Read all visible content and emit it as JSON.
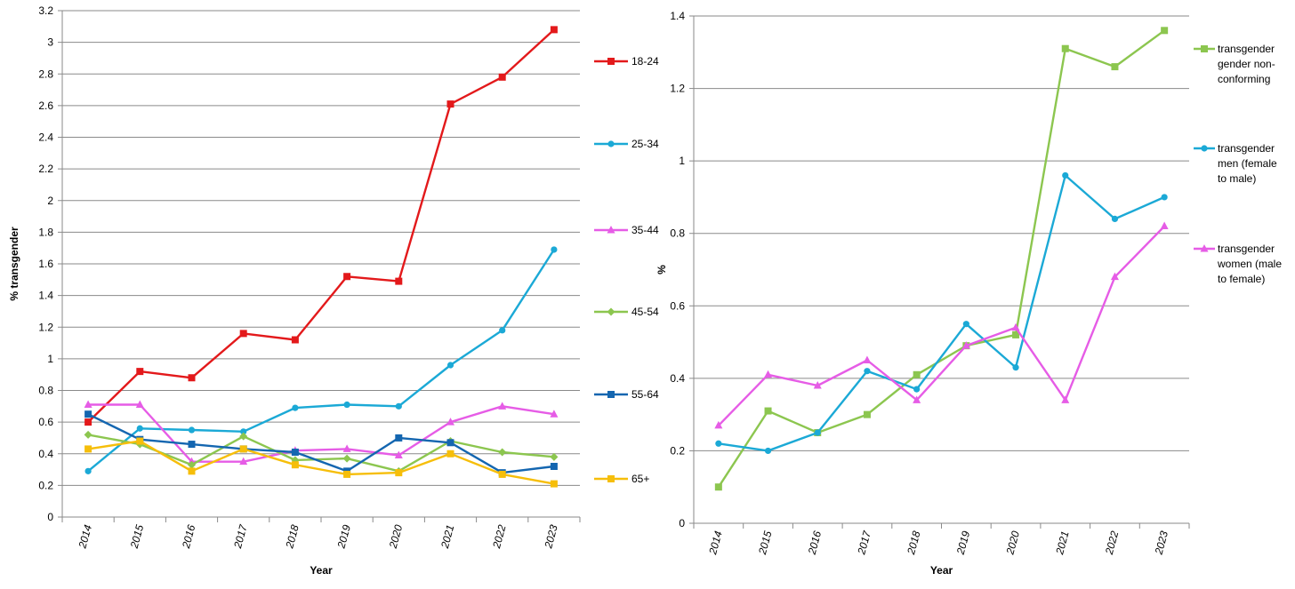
{
  "chart_data": [
    {
      "type": "line",
      "xlabel": "Year",
      "ylabel": "% transgender",
      "ylim": [
        0,
        3.2
      ],
      "yticks": [
        "0",
        "0.2",
        "0.4",
        "0.6",
        "0.8",
        "1",
        "1.2",
        "1.4",
        "1.6",
        "1.8",
        "2",
        "2.2",
        "2.4",
        "2.6",
        "2.8",
        "3",
        "3.2"
      ],
      "categories": [
        "2014",
        "2015",
        "2016",
        "2017",
        "2018",
        "2019",
        "2020",
        "2021",
        "2022",
        "2023"
      ],
      "grid": "horizontal",
      "legend_position": "right",
      "series": [
        {
          "name": "18-24",
          "color": "#e3191b",
          "marker": "square",
          "values": [
            0.6,
            0.92,
            0.88,
            1.16,
            1.12,
            1.52,
            1.49,
            2.61,
            2.78,
            3.08
          ]
        },
        {
          "name": "25-34",
          "color": "#1ba9d6",
          "marker": "circle",
          "values": [
            0.29,
            0.56,
            0.55,
            0.54,
            0.69,
            0.71,
            0.7,
            0.96,
            1.18,
            1.69
          ]
        },
        {
          "name": "35-44",
          "color": "#e65ce6",
          "marker": "triangle",
          "values": [
            0.71,
            0.71,
            0.35,
            0.35,
            0.42,
            0.43,
            0.39,
            0.6,
            0.7,
            0.65
          ]
        },
        {
          "name": "45-54",
          "color": "#8cc64f",
          "marker": "diamond",
          "values": [
            0.52,
            0.46,
            0.33,
            0.51,
            0.36,
            0.37,
            0.29,
            0.48,
            0.41,
            0.38
          ]
        },
        {
          "name": "55-64",
          "color": "#1466b0",
          "marker": "square",
          "values": [
            0.65,
            0.49,
            0.46,
            0.43,
            0.41,
            0.29,
            0.5,
            0.47,
            0.28,
            0.32
          ]
        },
        {
          "name": "65+",
          "color": "#f6be0a",
          "marker": "square",
          "values": [
            0.43,
            0.48,
            0.29,
            0.43,
            0.33,
            0.27,
            0.28,
            0.4,
            0.27,
            0.21
          ]
        }
      ]
    },
    {
      "type": "line",
      "xlabel": "Year",
      "ylabel": "%",
      "ylim": [
        0,
        1.4
      ],
      "yticks": [
        "0",
        "0.2",
        "0.4",
        "0.6",
        "0.8",
        "1",
        "1.2",
        "1.4"
      ],
      "categories": [
        "2014",
        "2015",
        "2016",
        "2017",
        "2018",
        "2019",
        "2020",
        "2021",
        "2022",
        "2023"
      ],
      "grid": "horizontal",
      "legend_position": "right",
      "series": [
        {
          "name": "transgender gender non-conforming",
          "legend_lines": [
            "transgender",
            "gender non-",
            "conforming"
          ],
          "color": "#8cc64f",
          "marker": "square",
          "values": [
            0.1,
            0.31,
            0.25,
            0.3,
            0.41,
            0.49,
            0.52,
            1.31,
            1.26,
            1.36
          ]
        },
        {
          "name": "transgender men (female to male)",
          "legend_lines": [
            "transgender",
            "men (female",
            "to male)"
          ],
          "color": "#1ba9d6",
          "marker": "circle",
          "values": [
            0.22,
            0.2,
            0.25,
            0.42,
            0.37,
            0.55,
            0.43,
            0.96,
            0.84,
            0.9
          ]
        },
        {
          "name": "transgender women (male to female)",
          "legend_lines": [
            "transgender",
            "women (male",
            "to female)"
          ],
          "color": "#e65ce6",
          "marker": "triangle",
          "values": [
            0.27,
            0.41,
            0.38,
            0.45,
            0.34,
            0.49,
            0.54,
            0.34,
            0.68,
            0.82
          ]
        }
      ]
    }
  ]
}
